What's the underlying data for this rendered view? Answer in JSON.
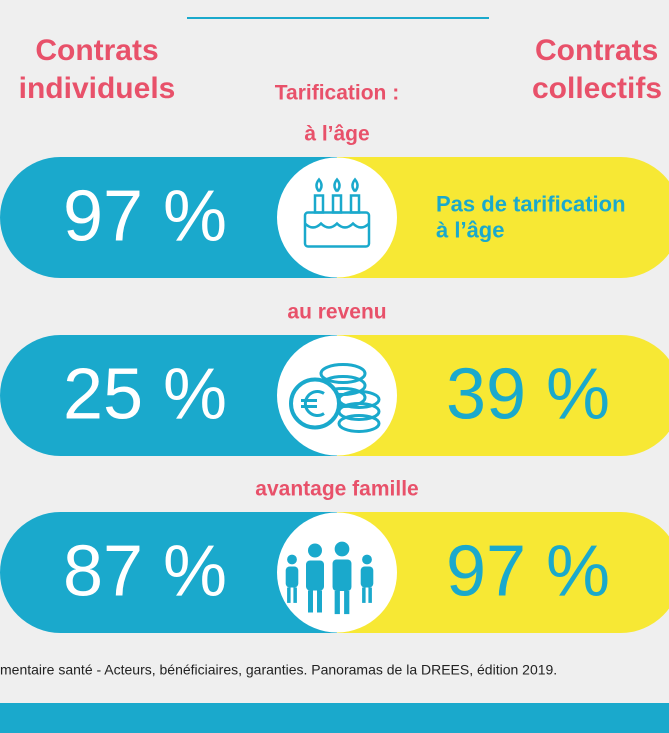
{
  "header": {
    "left_title": [
      "Contrats",
      "individuels"
    ],
    "right_title": [
      "Contrats",
      "collectifs"
    ],
    "center": "Tarification :"
  },
  "rows": [
    {
      "label": "à l’âge",
      "left": "97 %",
      "right": [
        "Pas de tarification",
        "à l’âge"
      ]
    },
    {
      "label": "au revenu",
      "left": "25 %",
      "right": [
        "39 %"
      ]
    },
    {
      "label": "avantage famille",
      "left": "87 %",
      "right": [
        "97 %"
      ]
    }
  ],
  "footer": "mentaire santé - Acteurs, bénéficiaires, garanties. Panoramas de la DREES, édition 2019."
}
